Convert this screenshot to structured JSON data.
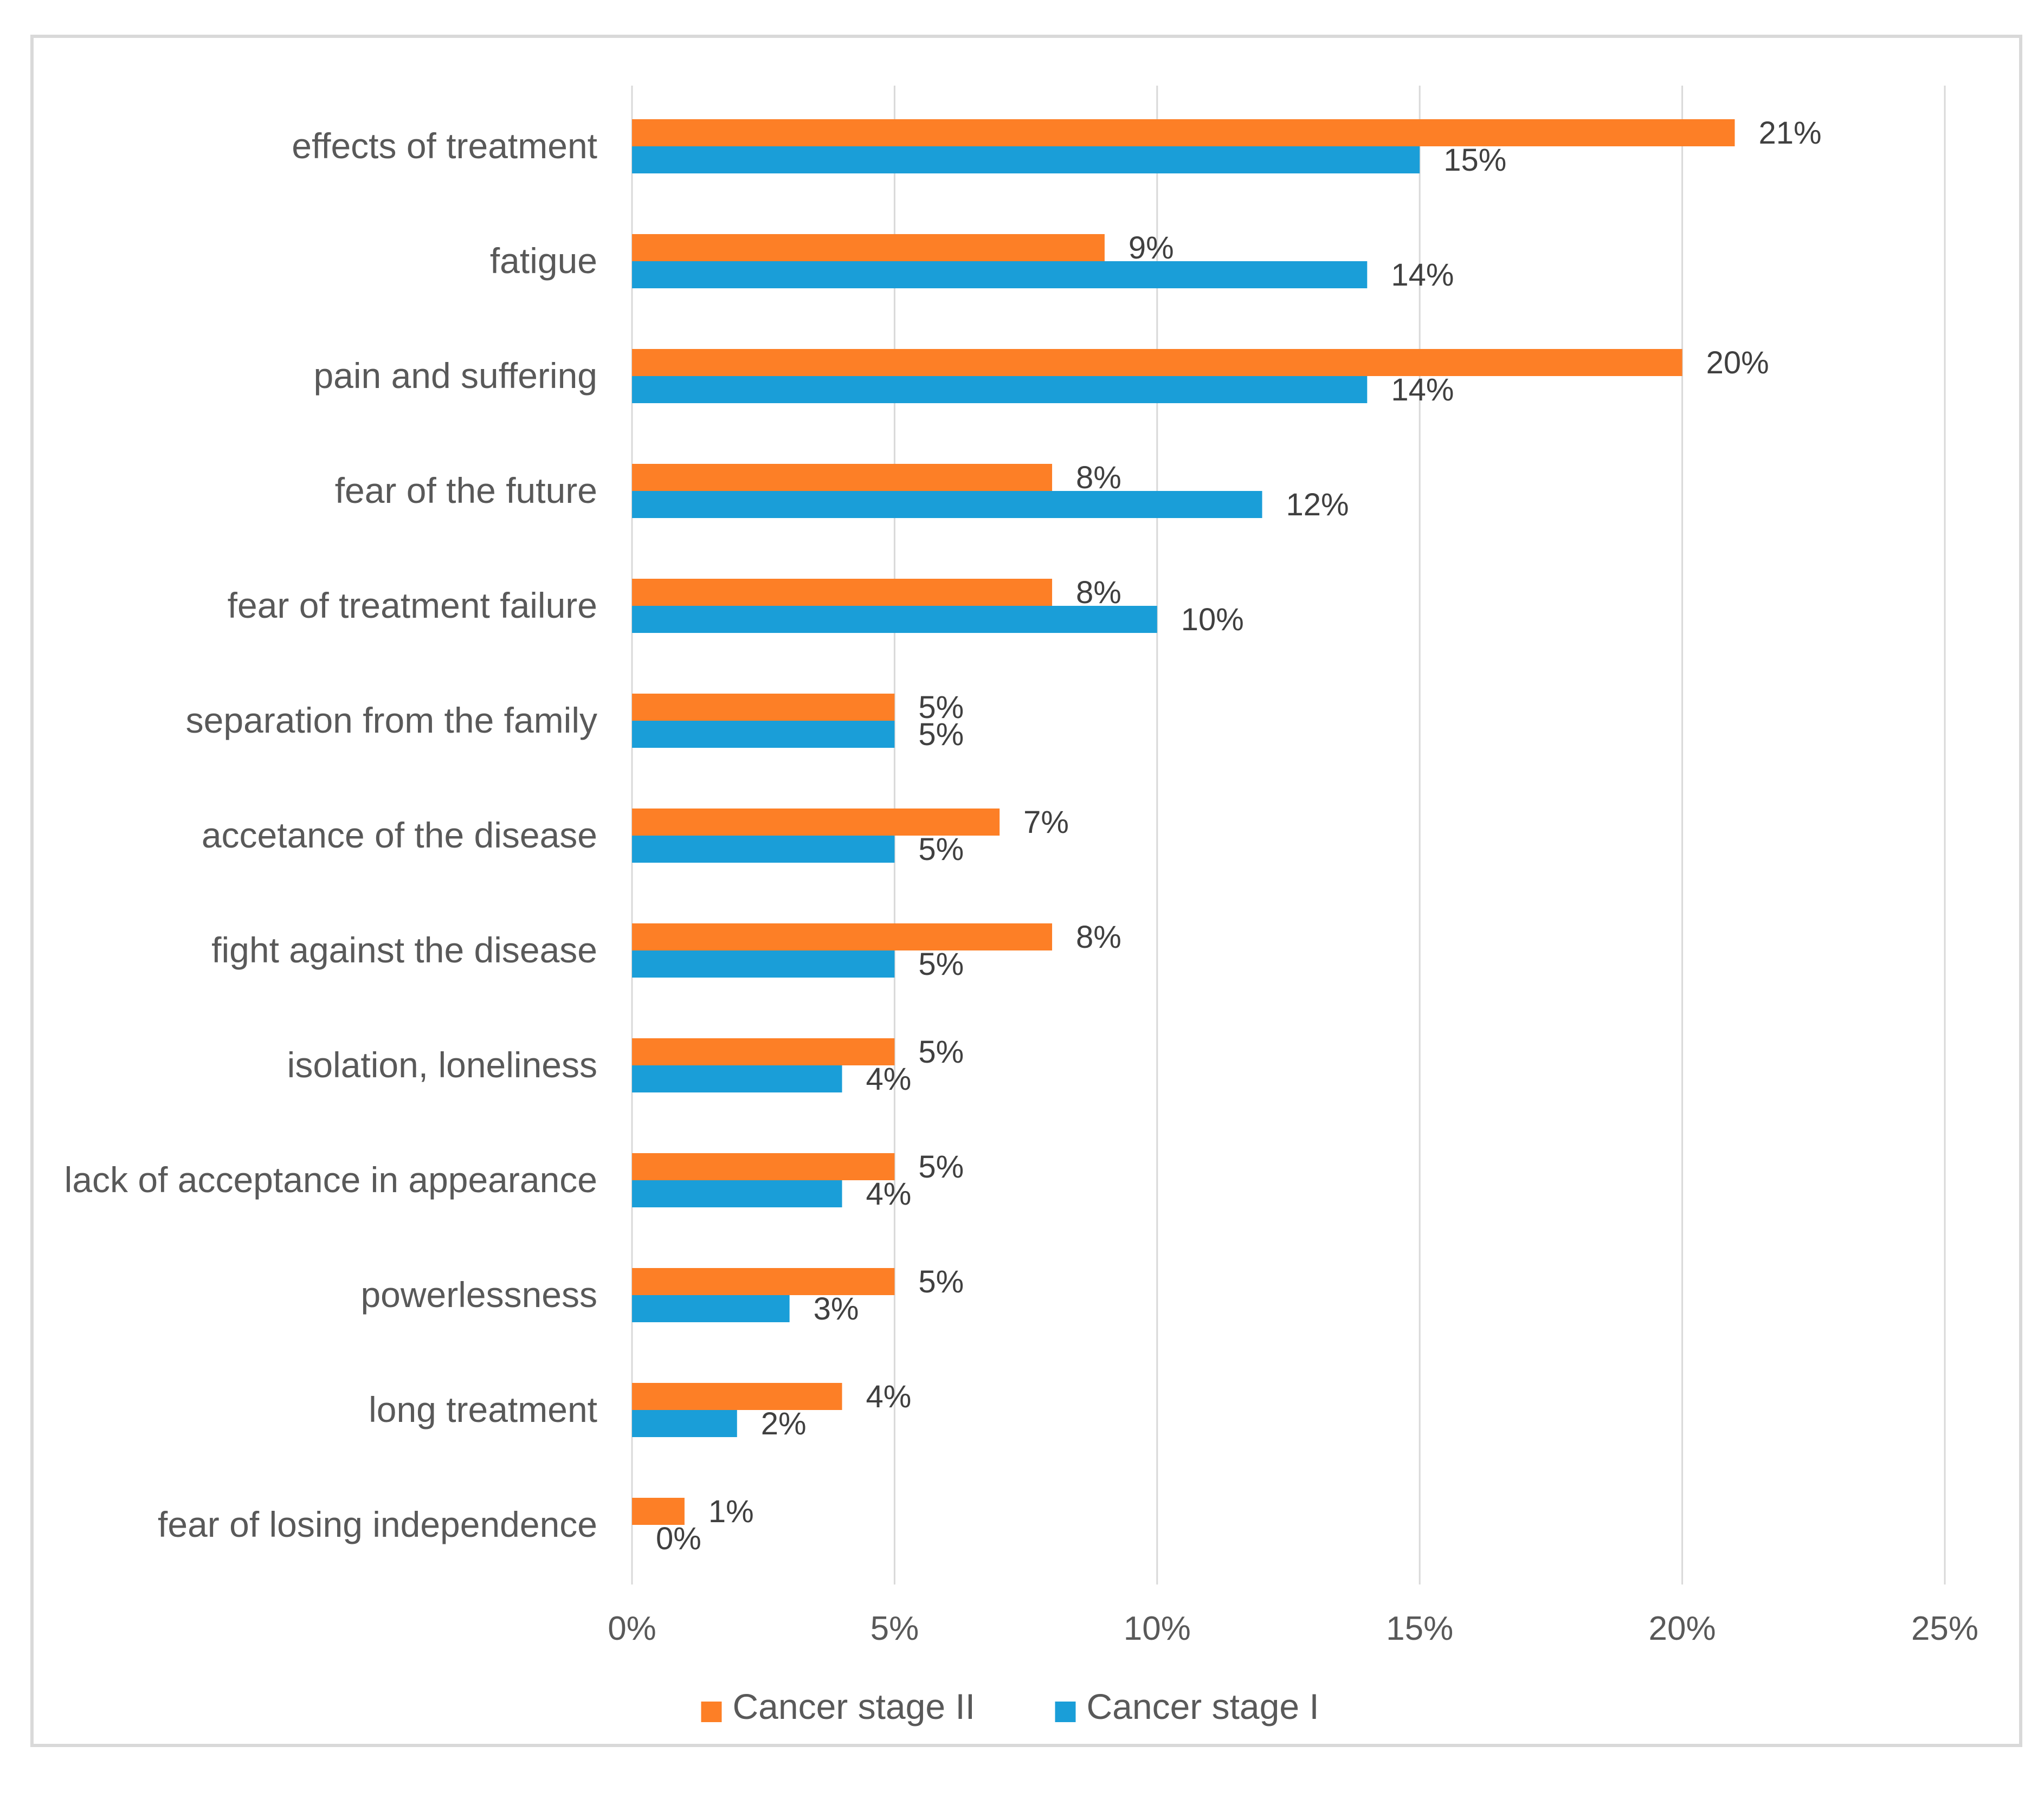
{
  "chart_data": {
    "type": "bar",
    "orientation": "horizontal",
    "categories": [
      "effects of treatment",
      "fatigue",
      "pain and suffering",
      "fear of the future",
      "fear of treatment failure",
      "separation from the family",
      "accetance of the disease",
      "fight against the disease",
      "isolation, loneliness",
      "lack of acceptance in appearance",
      "powerlessness",
      "long treatment",
      "fear of losing independence"
    ],
    "series": [
      {
        "name": "Cancer stage II",
        "color": "#fd7f26",
        "values": [
          21,
          9,
          20,
          8,
          8,
          5,
          7,
          8,
          5,
          5,
          5,
          4,
          1
        ],
        "labels": [
          "21%",
          "9%",
          "20%",
          "8%",
          "8%",
          "5%",
          "7%",
          "8%",
          "5%",
          "5%",
          "5%",
          "4%",
          "1%"
        ]
      },
      {
        "name": "Cancer stage I",
        "color": "#1a9ed8",
        "values": [
          15,
          14,
          14,
          12,
          10,
          5,
          5,
          5,
          4,
          4,
          3,
          2,
          0
        ],
        "labels": [
          "15%",
          "14%",
          "14%",
          "12%",
          "10%",
          "5%",
          "5%",
          "5%",
          "4%",
          "4%",
          "3%",
          "2%",
          "0%"
        ]
      }
    ],
    "xlim": [
      0,
      25
    ],
    "xticks": [
      0,
      5,
      10,
      15,
      20,
      25
    ],
    "xtick_labels": [
      "0%",
      "5%",
      "10%",
      "15%",
      "20%",
      "25%"
    ],
    "grid": true,
    "legend_position": "bottom",
    "title": "",
    "xlabel": "",
    "ylabel": ""
  }
}
